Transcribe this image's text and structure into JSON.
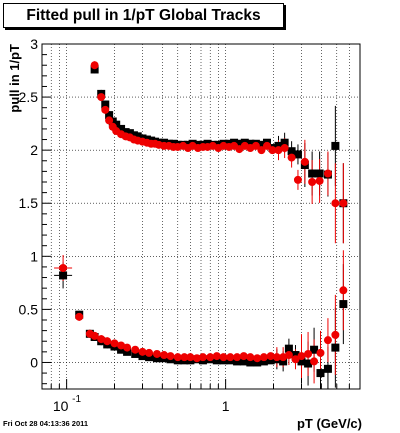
{
  "title": "Fitted pull in 1/pT  Global Tracks",
  "footer": "Fri Oct 28 04:13:36 2011",
  "chart_data": {
    "type": "scatter",
    "title": "Fitted pull in 1/pT  Global Tracks",
    "xlabel": "pT (GeV/c)",
    "ylabel": "pull in 1/pT",
    "xscale": "log",
    "xlim": [
      0.07,
      7.0
    ],
    "ylim": [
      -0.25,
      3.0
    ],
    "grid": true,
    "y_tick_labels": [
      "0",
      "0.5",
      "1",
      "1.5",
      "2",
      "2.5",
      "3"
    ],
    "y_ticks": [
      0,
      0.5,
      1,
      1.5,
      2,
      2.5,
      3
    ],
    "x_tick_labels": [
      {
        "value": 0.1,
        "base": "10",
        "exp": "-1"
      },
      {
        "value": 1,
        "base": "1",
        "exp": ""
      }
    ],
    "colors": {
      "series_a": "#000000",
      "series_b": "#ee0000"
    },
    "series": [
      {
        "name": "",
        "color": "#000000",
        "marker": "square",
        "points": [
          [
            0.15,
            2.76
          ],
          [
            0.165,
            2.53
          ],
          [
            0.175,
            2.43
          ],
          [
            0.185,
            2.33
          ],
          [
            0.195,
            2.27
          ],
          [
            0.205,
            2.24
          ],
          [
            0.22,
            2.2
          ],
          [
            0.235,
            2.17
          ],
          [
            0.25,
            2.16
          ],
          [
            0.265,
            2.14
          ],
          [
            0.28,
            2.13
          ],
          [
            0.3,
            2.11
          ],
          [
            0.32,
            2.1
          ],
          [
            0.34,
            2.09
          ],
          [
            0.36,
            2.08
          ],
          [
            0.38,
            2.07
          ],
          [
            0.41,
            2.07
          ],
          [
            0.44,
            2.06
          ],
          [
            0.47,
            2.06
          ],
          [
            0.5,
            2.05
          ],
          [
            0.54,
            2.05
          ],
          [
            0.58,
            2.05
          ],
          [
            0.62,
            2.06
          ],
          [
            0.67,
            2.05
          ],
          [
            0.72,
            2.05
          ],
          [
            0.77,
            2.06
          ],
          [
            0.83,
            2.05
          ],
          [
            0.9,
            2.05
          ],
          [
            0.97,
            2.06
          ],
          [
            1.05,
            2.06
          ],
          [
            1.13,
            2.07
          ],
          [
            1.22,
            2.06
          ],
          [
            1.32,
            2.07
          ],
          [
            1.43,
            2.06
          ],
          [
            1.55,
            2.06
          ],
          [
            1.68,
            2.05
          ],
          [
            1.82,
            2.07
          ],
          [
            1.97,
            2.02
          ],
          [
            2.15,
            2.04
          ],
          [
            2.35,
            2.07
          ],
          [
            2.6,
            1.99
          ],
          [
            2.85,
            1.96
          ],
          [
            3.15,
            1.86
          ],
          [
            3.5,
            1.78
          ],
          [
            3.9,
            1.78
          ],
          [
            4.4,
            1.77
          ],
          [
            4.9,
            2.04
          ],
          [
            5.5,
            1.5
          ]
        ],
        "points_low": [
          [
            0.095,
            0.82
          ],
          [
            0.12,
            0.45
          ],
          [
            0.14,
            0.27
          ],
          [
            0.15,
            0.24
          ],
          [
            0.165,
            0.2
          ],
          [
            0.18,
            0.17
          ],
          [
            0.2,
            0.15
          ],
          [
            0.22,
            0.12
          ],
          [
            0.24,
            0.1
          ],
          [
            0.27,
            0.08
          ],
          [
            0.3,
            0.06
          ],
          [
            0.33,
            0.05
          ],
          [
            0.37,
            0.04
          ],
          [
            0.41,
            0.04
          ],
          [
            0.45,
            0.03
          ],
          [
            0.5,
            0.02
          ],
          [
            0.55,
            0.02
          ],
          [
            0.6,
            0.02
          ],
          [
            0.66,
            0.03
          ],
          [
            0.72,
            0.02
          ],
          [
            0.8,
            0.03
          ],
          [
            0.88,
            0.02
          ],
          [
            0.97,
            0.02
          ],
          [
            1.07,
            0.02
          ],
          [
            1.18,
            0.01
          ],
          [
            1.3,
            0.01
          ],
          [
            1.43,
            0.0
          ],
          [
            1.58,
            0.0
          ],
          [
            1.74,
            0.01
          ],
          [
            1.92,
            0.02
          ],
          [
            2.1,
            0.03
          ],
          [
            2.3,
            0.01
          ],
          [
            2.5,
            0.13
          ],
          [
            2.75,
            0.07
          ],
          [
            3.0,
            0.01
          ],
          [
            3.3,
            -0.01
          ],
          [
            3.6,
            0.12
          ],
          [
            3.95,
            -0.1
          ],
          [
            4.4,
            -0.06
          ],
          [
            4.9,
            0.14
          ],
          [
            5.5,
            0.55
          ]
        ]
      },
      {
        "name": "",
        "color": "#ee0000",
        "marker": "circle",
        "points": [
          [
            0.15,
            2.8
          ],
          [
            0.165,
            2.5
          ],
          [
            0.175,
            2.38
          ],
          [
            0.185,
            2.28
          ],
          [
            0.195,
            2.22
          ],
          [
            0.205,
            2.18
          ],
          [
            0.22,
            2.15
          ],
          [
            0.235,
            2.13
          ],
          [
            0.25,
            2.12
          ],
          [
            0.265,
            2.1
          ],
          [
            0.28,
            2.09
          ],
          [
            0.3,
            2.08
          ],
          [
            0.32,
            2.07
          ],
          [
            0.34,
            2.06
          ],
          [
            0.36,
            2.06
          ],
          [
            0.38,
            2.05
          ],
          [
            0.41,
            2.04
          ],
          [
            0.44,
            2.04
          ],
          [
            0.47,
            2.03
          ],
          [
            0.5,
            2.03
          ],
          [
            0.54,
            2.04
          ],
          [
            0.58,
            2.02
          ],
          [
            0.62,
            2.04
          ],
          [
            0.67,
            2.02
          ],
          [
            0.72,
            2.03
          ],
          [
            0.77,
            2.03
          ],
          [
            0.83,
            2.04
          ],
          [
            0.9,
            2.02
          ],
          [
            0.97,
            2.04
          ],
          [
            1.05,
            2.03
          ],
          [
            1.13,
            2.04
          ],
          [
            1.22,
            2.01
          ],
          [
            1.32,
            2.04
          ],
          [
            1.43,
            2.02
          ],
          [
            1.55,
            2.04
          ],
          [
            1.68,
            2.0
          ],
          [
            1.82,
            2.04
          ],
          [
            1.97,
            2.0
          ],
          [
            2.15,
            2.0
          ],
          [
            2.35,
            2.02
          ],
          [
            2.6,
            1.93
          ],
          [
            2.85,
            1.72
          ],
          [
            3.15,
            1.89
          ],
          [
            3.5,
            1.7
          ],
          [
            3.9,
            1.71
          ],
          [
            4.4,
            1.78
          ],
          [
            4.9,
            1.5
          ],
          [
            5.5,
            1.5
          ]
        ],
        "points_low": [
          [
            0.095,
            0.89
          ],
          [
            0.12,
            0.43
          ],
          [
            0.14,
            0.27
          ],
          [
            0.15,
            0.25
          ],
          [
            0.165,
            0.22
          ],
          [
            0.18,
            0.2
          ],
          [
            0.2,
            0.18
          ],
          [
            0.22,
            0.16
          ],
          [
            0.24,
            0.14
          ],
          [
            0.27,
            0.12
          ],
          [
            0.3,
            0.1
          ],
          [
            0.33,
            0.09
          ],
          [
            0.37,
            0.08
          ],
          [
            0.41,
            0.07
          ],
          [
            0.45,
            0.06
          ],
          [
            0.5,
            0.05
          ],
          [
            0.55,
            0.05
          ],
          [
            0.6,
            0.05
          ],
          [
            0.66,
            0.04
          ],
          [
            0.72,
            0.05
          ],
          [
            0.8,
            0.05
          ],
          [
            0.88,
            0.06
          ],
          [
            0.97,
            0.05
          ],
          [
            1.07,
            0.05
          ],
          [
            1.18,
            0.05
          ],
          [
            1.3,
            0.06
          ],
          [
            1.43,
            0.05
          ],
          [
            1.58,
            0.04
          ],
          [
            1.74,
            0.05
          ],
          [
            1.92,
            0.06
          ],
          [
            2.1,
            0.05
          ],
          [
            2.3,
            0.05
          ],
          [
            2.5,
            0.07
          ],
          [
            2.75,
            0.03
          ],
          [
            3.0,
            0.06
          ],
          [
            3.3,
            0.08
          ],
          [
            3.6,
            0.01
          ],
          [
            3.95,
            0.09
          ],
          [
            4.4,
            0.21
          ],
          [
            4.9,
            0.26
          ],
          [
            5.5,
            0.68
          ]
        ]
      }
    ]
  }
}
